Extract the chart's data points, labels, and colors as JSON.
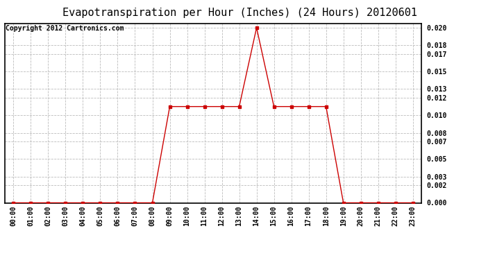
{
  "title": "Evapotranspiration per Hour (Inches) (24 Hours) 20120601",
  "copyright_text": "Copyright 2012 Cartronics.com",
  "hours": [
    "00:00",
    "01:00",
    "02:00",
    "03:00",
    "04:00",
    "05:00",
    "06:00",
    "07:00",
    "08:00",
    "09:00",
    "10:00",
    "11:00",
    "12:00",
    "13:00",
    "14:00",
    "15:00",
    "16:00",
    "17:00",
    "18:00",
    "19:00",
    "20:00",
    "21:00",
    "22:00",
    "23:00"
  ],
  "values": [
    0.0,
    0.0,
    0.0,
    0.0,
    0.0,
    0.0,
    0.0,
    0.0,
    0.0,
    0.011,
    0.011,
    0.011,
    0.011,
    0.011,
    0.02,
    0.011,
    0.011,
    0.011,
    0.011,
    0.0,
    0.0,
    0.0,
    0.0,
    0.0
  ],
  "yticks": [
    0.0,
    0.002,
    0.003,
    0.005,
    0.007,
    0.008,
    0.01,
    0.012,
    0.013,
    0.015,
    0.017,
    0.018,
    0.02
  ],
  "ylim": [
    0.0,
    0.0205
  ],
  "line_color": "#cc0000",
  "marker": "s",
  "marker_size": 2.5,
  "grid_color": "#bbbbbb",
  "grid_style": "--",
  "bg_color": "#ffffff",
  "title_fontsize": 11,
  "copyright_fontsize": 7,
  "tick_fontsize": 7,
  "ytick_fontsize": 7
}
